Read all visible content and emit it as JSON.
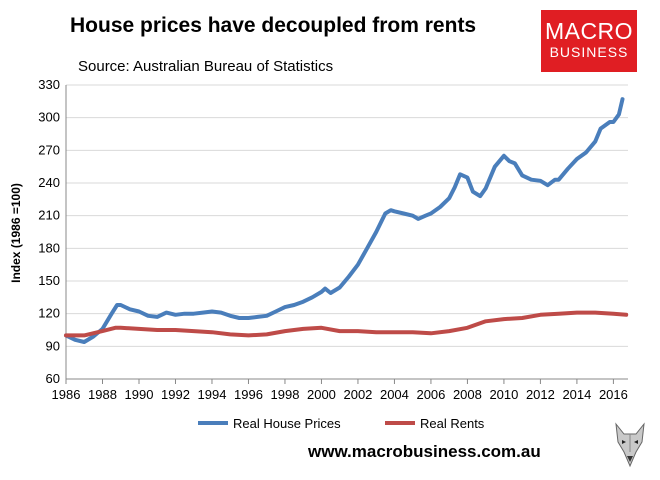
{
  "header": {
    "title": "House prices have decoupled from rents",
    "subtitle": "Source: Australian Bureau of Statistics"
  },
  "logo": {
    "line1": "MACRO",
    "line2": "BUSINESS"
  },
  "footer": {
    "url": "www.macrobusiness.com.au"
  },
  "colors": {
    "house": "#4a7ebb",
    "rents": "#be4b48",
    "logo_bg": "#e01e23"
  },
  "chart_data": {
    "type": "line",
    "title": "House prices have decoupled from rents",
    "xlabel": "",
    "ylabel": "Index (1986 =100)",
    "xlim": [
      1986,
      2016.8
    ],
    "ylim": [
      60,
      330
    ],
    "yticks": [
      60,
      90,
      120,
      150,
      180,
      210,
      240,
      270,
      300,
      330
    ],
    "xticks": [
      1986,
      1988,
      1990,
      1992,
      1994,
      1996,
      1998,
      2000,
      2002,
      2004,
      2006,
      2008,
      2010,
      2012,
      2014,
      2016
    ],
    "legend_position": "bottom",
    "series": [
      {
        "name": "Real House Prices",
        "color": "#4a7ebb",
        "x": [
          1986,
          1986.5,
          1987,
          1987.5,
          1988,
          1988.5,
          1988.8,
          1989,
          1989.5,
          1990,
          1990.5,
          1991,
          1991.5,
          1992,
          1992.5,
          1993,
          1993.5,
          1994,
          1994.5,
          1995,
          1995.5,
          1996,
          1996.5,
          1997,
          1997.5,
          1998,
          1998.5,
          1999,
          1999.5,
          2000,
          2000.2,
          2000.5,
          2001,
          2001.5,
          2002,
          2002.5,
          2003,
          2003.5,
          2003.8,
          2004,
          2004.5,
          2005,
          2005.3,
          2005.7,
          2006,
          2006.5,
          2007,
          2007.3,
          2007.6,
          2008,
          2008.3,
          2008.7,
          2009,
          2009.5,
          2010,
          2010.3,
          2010.6,
          2011,
          2011.5,
          2012,
          2012.4,
          2012.8,
          2013,
          2013.5,
          2014,
          2014.5,
          2015,
          2015.3,
          2015.8,
          2016,
          2016.3,
          2016.5
        ],
        "values": [
          100,
          96,
          94,
          99,
          106,
          120,
          128,
          128,
          124,
          122,
          118,
          117,
          121,
          119,
          120,
          120,
          121,
          122,
          121,
          118,
          116,
          116,
          117,
          118,
          122,
          126,
          128,
          131,
          135,
          140,
          143,
          139,
          144,
          154,
          165,
          180,
          195,
          212,
          215,
          214,
          212,
          210,
          207,
          210,
          212,
          218,
          226,
          236,
          248,
          245,
          232,
          228,
          235,
          255,
          265,
          260,
          258,
          247,
          243,
          242,
          238,
          243,
          243,
          253,
          262,
          268,
          278,
          290,
          296,
          296,
          303,
          317
        ]
      },
      {
        "name": "Real Rents",
        "color": "#be4b48",
        "x": [
          1986,
          1987,
          1988,
          1988.7,
          1989,
          1990,
          1991,
          1992,
          1993,
          1994,
          1995,
          1996,
          1997,
          1998,
          1999,
          2000,
          2001,
          2002,
          2003,
          2004,
          2005,
          2006,
          2007,
          2008,
          2009,
          2010,
          2011,
          2012,
          2013,
          2014,
          2015,
          2016,
          2016.7
        ],
        "values": [
          100,
          100,
          104,
          107,
          107,
          106,
          105,
          105,
          104,
          103,
          101,
          100,
          101,
          104,
          106,
          107,
          104,
          104,
          103,
          103,
          103,
          102,
          104,
          107,
          113,
          115,
          116,
          119,
          120,
          121,
          121,
          120,
          119
        ]
      }
    ]
  }
}
